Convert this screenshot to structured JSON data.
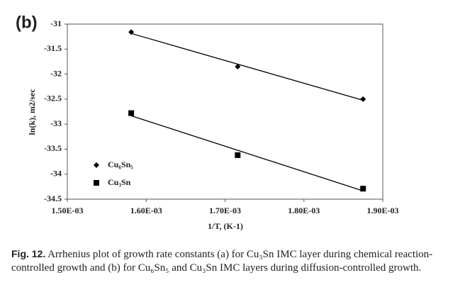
{
  "chart_data": {
    "type": "scatter",
    "panel_label": "(b)",
    "x_label": "1/T, (K-1)",
    "y_label": "ln(k), m2/sec",
    "xlim": [
      0.0015,
      0.0019
    ],
    "ylim": [
      -34.5,
      -31
    ],
    "xticks": [
      {
        "value": 0.0015,
        "label": "1.50E-03"
      },
      {
        "value": 0.0016,
        "label": "1.60E-03"
      },
      {
        "value": 0.0017,
        "label": "1.70E-03"
      },
      {
        "value": 0.0018,
        "label": "1.80E-03"
      },
      {
        "value": 0.0019,
        "label": "1.90E-03"
      }
    ],
    "yticks": [
      -31,
      -31.5,
      -32,
      -32.5,
      -33,
      -33.5,
      -34,
      -34.5
    ],
    "grid": false,
    "trendline": true,
    "legend": "lower-left",
    "series": [
      {
        "name": "Cu₆Sn₅",
        "color": "#000000",
        "marker": "diamond",
        "x": [
          0.001581,
          0.001716,
          0.001875
        ],
        "values": [
          -31.16,
          -31.85,
          -32.5
        ]
      },
      {
        "name": "Cu₃Sn",
        "color": "#000000",
        "marker": "square",
        "x": [
          0.001581,
          0.001716,
          0.001875
        ],
        "values": [
          -32.78,
          -33.62,
          -34.29
        ]
      }
    ]
  },
  "caption": {
    "label": "Fig. 12.",
    "text": "Arrhenius plot of growth rate constants (a) for Cu₃Sn IMC layer during chemical reaction-controlled growth and (b) for Cu₆Sn₅ and Cu₃Sn IMC layers during diffusion-controlled growth."
  }
}
